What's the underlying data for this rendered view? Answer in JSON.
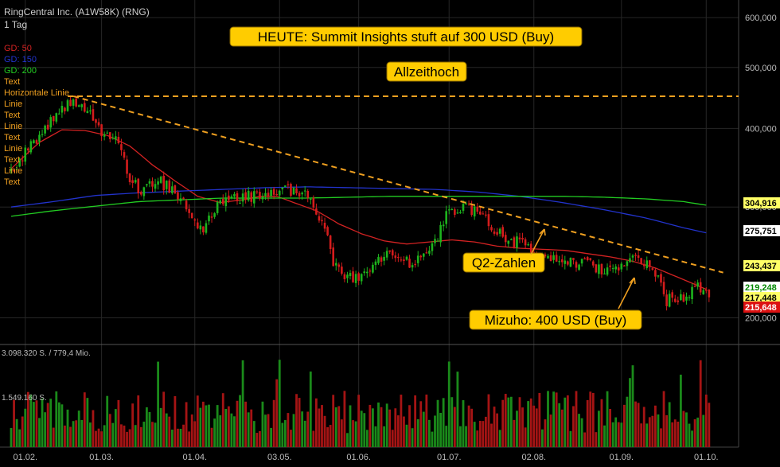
{
  "header": {
    "title": "RingCentral Inc. (A1W58K) (RNG)",
    "interval": "1 Tag"
  },
  "legend": [
    {
      "label": "GD: 50",
      "color": "#d22222"
    },
    {
      "label": "GD: 150",
      "color": "#2233cc"
    },
    {
      "label": "GD: 200",
      "color": "#22cc22"
    },
    {
      "label": "Text",
      "color": "#f0a020"
    },
    {
      "label": "Horizontale Linie",
      "color": "#f0a020"
    },
    {
      "label": "Linie",
      "color": "#f0a020"
    },
    {
      "label": "Text",
      "color": "#f0a020"
    },
    {
      "label": "Linie",
      "color": "#f0a020"
    },
    {
      "label": "Text",
      "color": "#f0a020"
    },
    {
      "label": "Linie",
      "color": "#f0a020"
    },
    {
      "label": "Text",
      "color": "#f0a020"
    },
    {
      "label": "Linie",
      "color": "#f0a020"
    },
    {
      "label": "Text",
      "color": "#f0a020"
    }
  ],
  "annotations": [
    {
      "text": "HEUTE: Summit Insights stuft auf 300 USD (Buy)"
    },
    {
      "text": "Allzeithoch"
    },
    {
      "text": "Q2-Zahlen"
    },
    {
      "text": "Mizuho: 400 USD (Buy)"
    }
  ],
  "volume_labels": {
    "top": "3.098.320 S. / 779,4 Mio.",
    "mid": "1.549.160 S."
  },
  "colors": {
    "up": "#1db31d",
    "down": "#d41c1c",
    "gd50": "#d22222",
    "gd150": "#2233cc",
    "gd200": "#22cc22",
    "trend": "#f0a020",
    "annotation_bg": "#ffcc00"
  },
  "chart_data": {
    "type": "candlestick",
    "title": "RingCentral Inc. (A1W58K) (RNG)",
    "interval": "1 Tag",
    "x_ticks": [
      "01.02.",
      "01.03.",
      "01.04.",
      "03.05.",
      "01.06.",
      "01.07.",
      "02.08.",
      "01.09.",
      "01.10."
    ],
    "y_ticks": [
      {
        "value": 200,
        "label": "200,000"
      },
      {
        "value": 300,
        "label": "300,000"
      },
      {
        "value": 400,
        "label": "400,000"
      },
      {
        "value": 500,
        "label": "500,000"
      },
      {
        "value": 600,
        "label": "600,000"
      }
    ],
    "y_scale": "log",
    "ylim": [
      183,
      640
    ],
    "price_anchors": [
      {
        "x": 0,
        "y": 342
      },
      {
        "x": 10,
        "y": 390
      },
      {
        "x": 18,
        "y": 430
      },
      {
        "x": 22,
        "y": 446
      },
      {
        "x": 28,
        "y": 420
      },
      {
        "x": 32,
        "y": 388
      },
      {
        "x": 38,
        "y": 380
      },
      {
        "x": 42,
        "y": 330
      },
      {
        "x": 46,
        "y": 318
      },
      {
        "x": 52,
        "y": 332
      },
      {
        "x": 58,
        "y": 315
      },
      {
        "x": 64,
        "y": 290
      },
      {
        "x": 68,
        "y": 275
      },
      {
        "x": 72,
        "y": 298
      },
      {
        "x": 80,
        "y": 310
      },
      {
        "x": 90,
        "y": 314
      },
      {
        "x": 98,
        "y": 320
      },
      {
        "x": 106,
        "y": 310
      },
      {
        "x": 110,
        "y": 285
      },
      {
        "x": 114,
        "y": 245
      },
      {
        "x": 118,
        "y": 230
      },
      {
        "x": 124,
        "y": 232
      },
      {
        "x": 130,
        "y": 248
      },
      {
        "x": 136,
        "y": 252
      },
      {
        "x": 142,
        "y": 243
      },
      {
        "x": 150,
        "y": 262
      },
      {
        "x": 154,
        "y": 290
      },
      {
        "x": 160,
        "y": 300
      },
      {
        "x": 166,
        "y": 296
      },
      {
        "x": 170,
        "y": 278
      },
      {
        "x": 176,
        "y": 265
      },
      {
        "x": 182,
        "y": 262
      },
      {
        "x": 186,
        "y": 245
      },
      {
        "x": 192,
        "y": 252
      },
      {
        "x": 198,
        "y": 246
      },
      {
        "x": 204,
        "y": 244
      },
      {
        "x": 210,
        "y": 236
      },
      {
        "x": 216,
        "y": 241
      },
      {
        "x": 222,
        "y": 250
      },
      {
        "x": 228,
        "y": 236
      },
      {
        "x": 232,
        "y": 213
      },
      {
        "x": 238,
        "y": 217
      },
      {
        "x": 242,
        "y": 224
      },
      {
        "x": 246,
        "y": 220
      }
    ],
    "volume_ticks": [
      {
        "value": 3098320,
        "label": "3.098.320 S. / 779,4 Mio."
      },
      {
        "value": 1549160,
        "label": "1.549.160 S."
      }
    ],
    "moving_averages": [
      {
        "name": "GD: 50",
        "color": "#d22222",
        "points": [
          {
            "x": 0,
            "y": 345
          },
          {
            "x": 10,
            "y": 380
          },
          {
            "x": 18,
            "y": 398
          },
          {
            "x": 26,
            "y": 397
          },
          {
            "x": 34,
            "y": 390
          },
          {
            "x": 42,
            "y": 375
          },
          {
            "x": 50,
            "y": 350
          },
          {
            "x": 58,
            "y": 330
          },
          {
            "x": 66,
            "y": 312
          },
          {
            "x": 74,
            "y": 305
          },
          {
            "x": 82,
            "y": 308
          },
          {
            "x": 88,
            "y": 312
          },
          {
            "x": 94,
            "y": 312
          },
          {
            "x": 100,
            "y": 305
          },
          {
            "x": 108,
            "y": 296
          },
          {
            "x": 116,
            "y": 282
          },
          {
            "x": 124,
            "y": 272
          },
          {
            "x": 132,
            "y": 265
          },
          {
            "x": 140,
            "y": 262
          },
          {
            "x": 148,
            "y": 264
          },
          {
            "x": 156,
            "y": 266
          },
          {
            "x": 164,
            "y": 264
          },
          {
            "x": 172,
            "y": 260
          },
          {
            "x": 180,
            "y": 258
          },
          {
            "x": 188,
            "y": 257
          },
          {
            "x": 196,
            "y": 256
          },
          {
            "x": 204,
            "y": 253
          },
          {
            "x": 212,
            "y": 250
          },
          {
            "x": 220,
            "y": 246
          },
          {
            "x": 228,
            "y": 240
          },
          {
            "x": 236,
            "y": 232
          },
          {
            "x": 244,
            "y": 224
          },
          {
            "x": 246,
            "y": 222
          }
        ]
      },
      {
        "name": "GD: 150",
        "color": "#2233cc",
        "points": [
          {
            "x": 0,
            "y": 300
          },
          {
            "x": 15,
            "y": 306
          },
          {
            "x": 30,
            "y": 313
          },
          {
            "x": 45,
            "y": 316
          },
          {
            "x": 60,
            "y": 318
          },
          {
            "x": 75,
            "y": 320
          },
          {
            "x": 90,
            "y": 322
          },
          {
            "x": 105,
            "y": 323
          },
          {
            "x": 120,
            "y": 322
          },
          {
            "x": 135,
            "y": 321
          },
          {
            "x": 150,
            "y": 320
          },
          {
            "x": 165,
            "y": 317
          },
          {
            "x": 180,
            "y": 312
          },
          {
            "x": 195,
            "y": 305
          },
          {
            "x": 210,
            "y": 297
          },
          {
            "x": 225,
            "y": 288
          },
          {
            "x": 238,
            "y": 278
          },
          {
            "x": 246,
            "y": 273
          }
        ]
      },
      {
        "name": "GD: 200",
        "color": "#22cc22",
        "points": [
          {
            "x": 0,
            "y": 290
          },
          {
            "x": 15,
            "y": 296
          },
          {
            "x": 30,
            "y": 301
          },
          {
            "x": 45,
            "y": 306
          },
          {
            "x": 60,
            "y": 308
          },
          {
            "x": 75,
            "y": 310
          },
          {
            "x": 90,
            "y": 310
          },
          {
            "x": 105,
            "y": 310
          },
          {
            "x": 120,
            "y": 311
          },
          {
            "x": 135,
            "y": 312
          },
          {
            "x": 150,
            "y": 312
          },
          {
            "x": 165,
            "y": 312
          },
          {
            "x": 180,
            "y": 312
          },
          {
            "x": 195,
            "y": 312
          },
          {
            "x": 210,
            "y": 311
          },
          {
            "x": 225,
            "y": 309
          },
          {
            "x": 238,
            "y": 306
          },
          {
            "x": 246,
            "y": 302
          }
        ]
      }
    ],
    "horizontal_line": {
      "value": 450
    },
    "trend_line": [
      {
        "x": 22,
        "y": 450
      },
      {
        "x": 252,
        "y": 236
      }
    ],
    "price_tags": [
      {
        "value": 304.916,
        "label": "304,916",
        "bg": "#ffff66",
        "fg": "#000000"
      },
      {
        "value": 275.751,
        "label": "275,751",
        "bg": "#ffffff",
        "fg": "#000000"
      },
      {
        "value": 243.437,
        "label": "243,437",
        "bg": "#ffff66",
        "fg": "#000000"
      },
      {
        "value": 219.248,
        "label": "219,248",
        "bg": "#ffffff",
        "fg": "#008800"
      },
      {
        "value": 217.448,
        "label": "217,448",
        "bg": "#ffff66",
        "fg": "#000000"
      },
      {
        "value": 215.648,
        "label": "215,648",
        "bg": "#dd1111",
        "fg": "#ffffff"
      }
    ],
    "grid": true,
    "legend_position": "top-left"
  }
}
